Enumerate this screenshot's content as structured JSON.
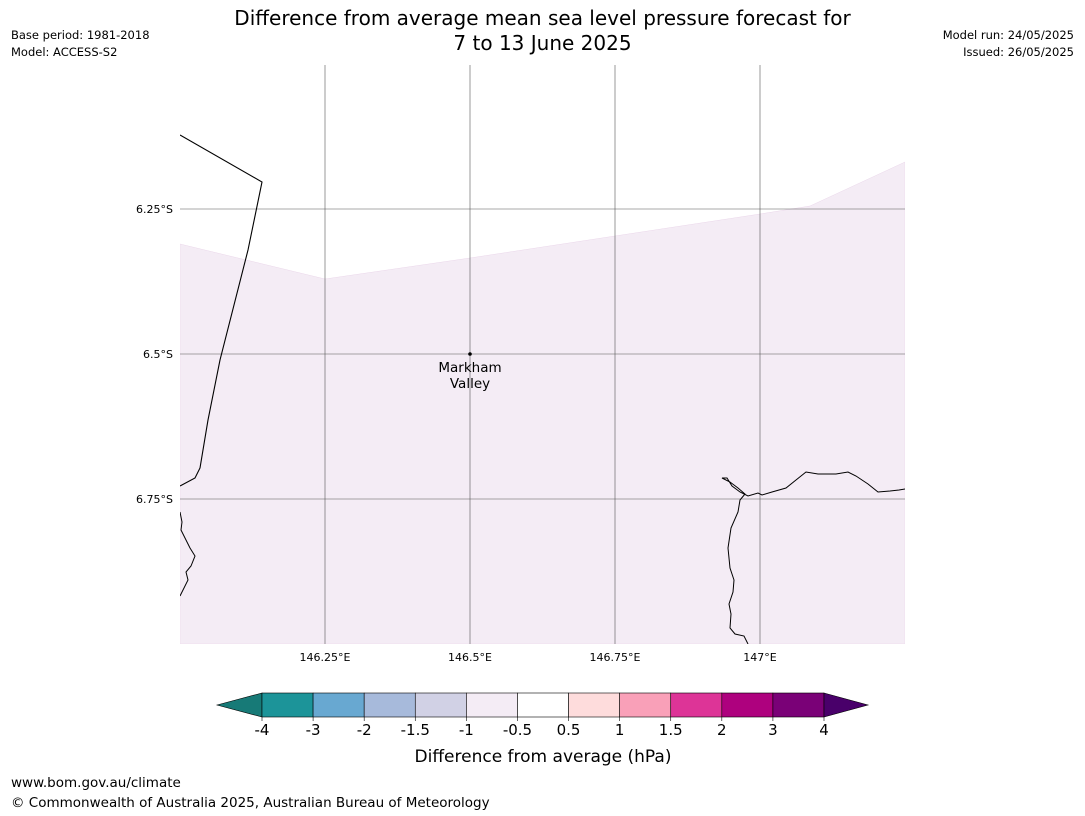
{
  "title": {
    "line1": "Difference from average mean sea level pressure forecast for",
    "line2": "7 to 13 June 2025"
  },
  "meta": {
    "base_period": "Base period: 1981-2018",
    "model": "Model: ACCESS-S2",
    "model_run": "Model run: 24/05/2025",
    "issued": "Issued: 26/05/2025"
  },
  "map": {
    "place": {
      "name_line1": "Markham",
      "name_line2": "Valley",
      "lon": 146.5,
      "lat": -6.5
    },
    "lat_lines": [
      {
        "value": -6.25,
        "label": "6.25°S"
      },
      {
        "value": -6.5,
        "label": "6.5°S"
      },
      {
        "value": -6.75,
        "label": "6.75°S"
      }
    ],
    "lon_lines": [
      {
        "value": 146.25,
        "label": "146.25°E"
      },
      {
        "value": 146.5,
        "label": "146.5°E"
      },
      {
        "value": 146.75,
        "label": "146.75°E"
      },
      {
        "value": 147.0,
        "label": "147°E"
      }
    ],
    "fill_color": "#f4ecf5",
    "anomaly_band": "-1 to -0.5"
  },
  "colorbar": {
    "ticks": [
      "-4",
      "-3",
      "-2",
      "-1.5",
      "-1",
      "-0.5",
      "0.5",
      "1",
      "1.5",
      "2",
      "3",
      "4"
    ],
    "colors": [
      "#177a77",
      "#1c9499",
      "#68a8d1",
      "#a7badb",
      "#d1d1e5",
      "#f4ecf5",
      "#ffffff",
      "#fedcdc",
      "#f9a0b8",
      "#dd3497",
      "#ae017e",
      "#7a0177",
      "#49006a"
    ],
    "label": "Difference from average (hPa)"
  },
  "footer": {
    "url": "www.bom.gov.au/climate",
    "copyright": "© Commonwealth of Australia 2025, Australian Bureau of Meteorology"
  }
}
